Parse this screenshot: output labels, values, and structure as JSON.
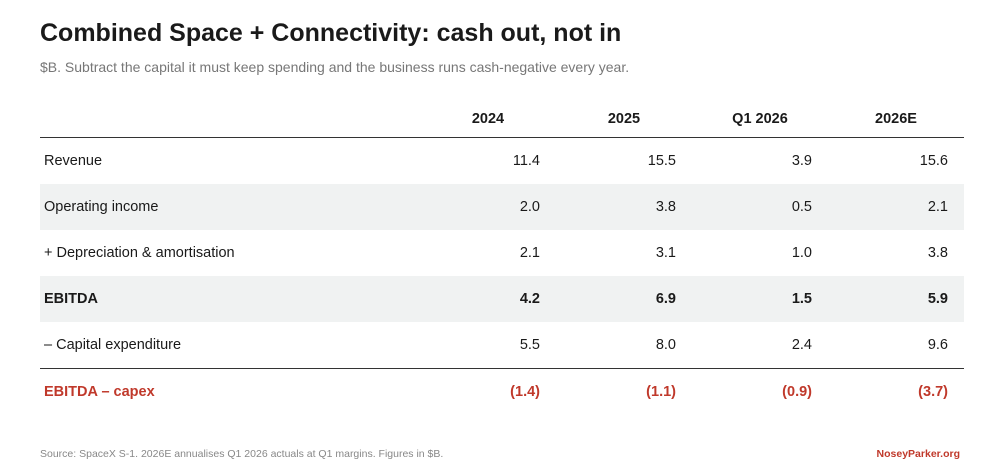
{
  "title": "Combined Space + Connectivity: cash out, not in",
  "subtitle": "$B. Subtract the capital it must keep spending and the business runs cash-negative every year.",
  "columns": [
    "2024",
    "2025",
    "Q1 2026",
    "2026E"
  ],
  "rows": [
    {
      "label": "Revenue",
      "values": [
        "11.4",
        "15.5",
        "3.9",
        "15.6"
      ]
    },
    {
      "label": "Operating income",
      "values": [
        "2.0",
        "3.8",
        "0.5",
        "2.1"
      ]
    },
    {
      "label": "+ Depreciation & amortisation",
      "values": [
        "2.1",
        "3.1",
        "1.0",
        "3.8"
      ]
    },
    {
      "label": "EBITDA",
      "values": [
        "4.2",
        "6.9",
        "1.5",
        "5.9"
      ]
    },
    {
      "label": "– Capital expenditure",
      "values": [
        "5.5",
        "8.0",
        "2.4",
        "9.6"
      ]
    },
    {
      "label": "EBITDA – capex",
      "values": [
        "(1.4)",
        "(1.1)",
        "(0.9)",
        "(3.7)"
      ]
    }
  ],
  "footer": {
    "source": "Source: SpaceX S-1. 2026E annualises Q1 2026 actuals at Q1 margins. Figures in $B.",
    "brand": "NoseyParker.org"
  },
  "colors": {
    "accent": "#c0392b",
    "row_shade": "#f0f2f2",
    "rule": "#333333"
  }
}
